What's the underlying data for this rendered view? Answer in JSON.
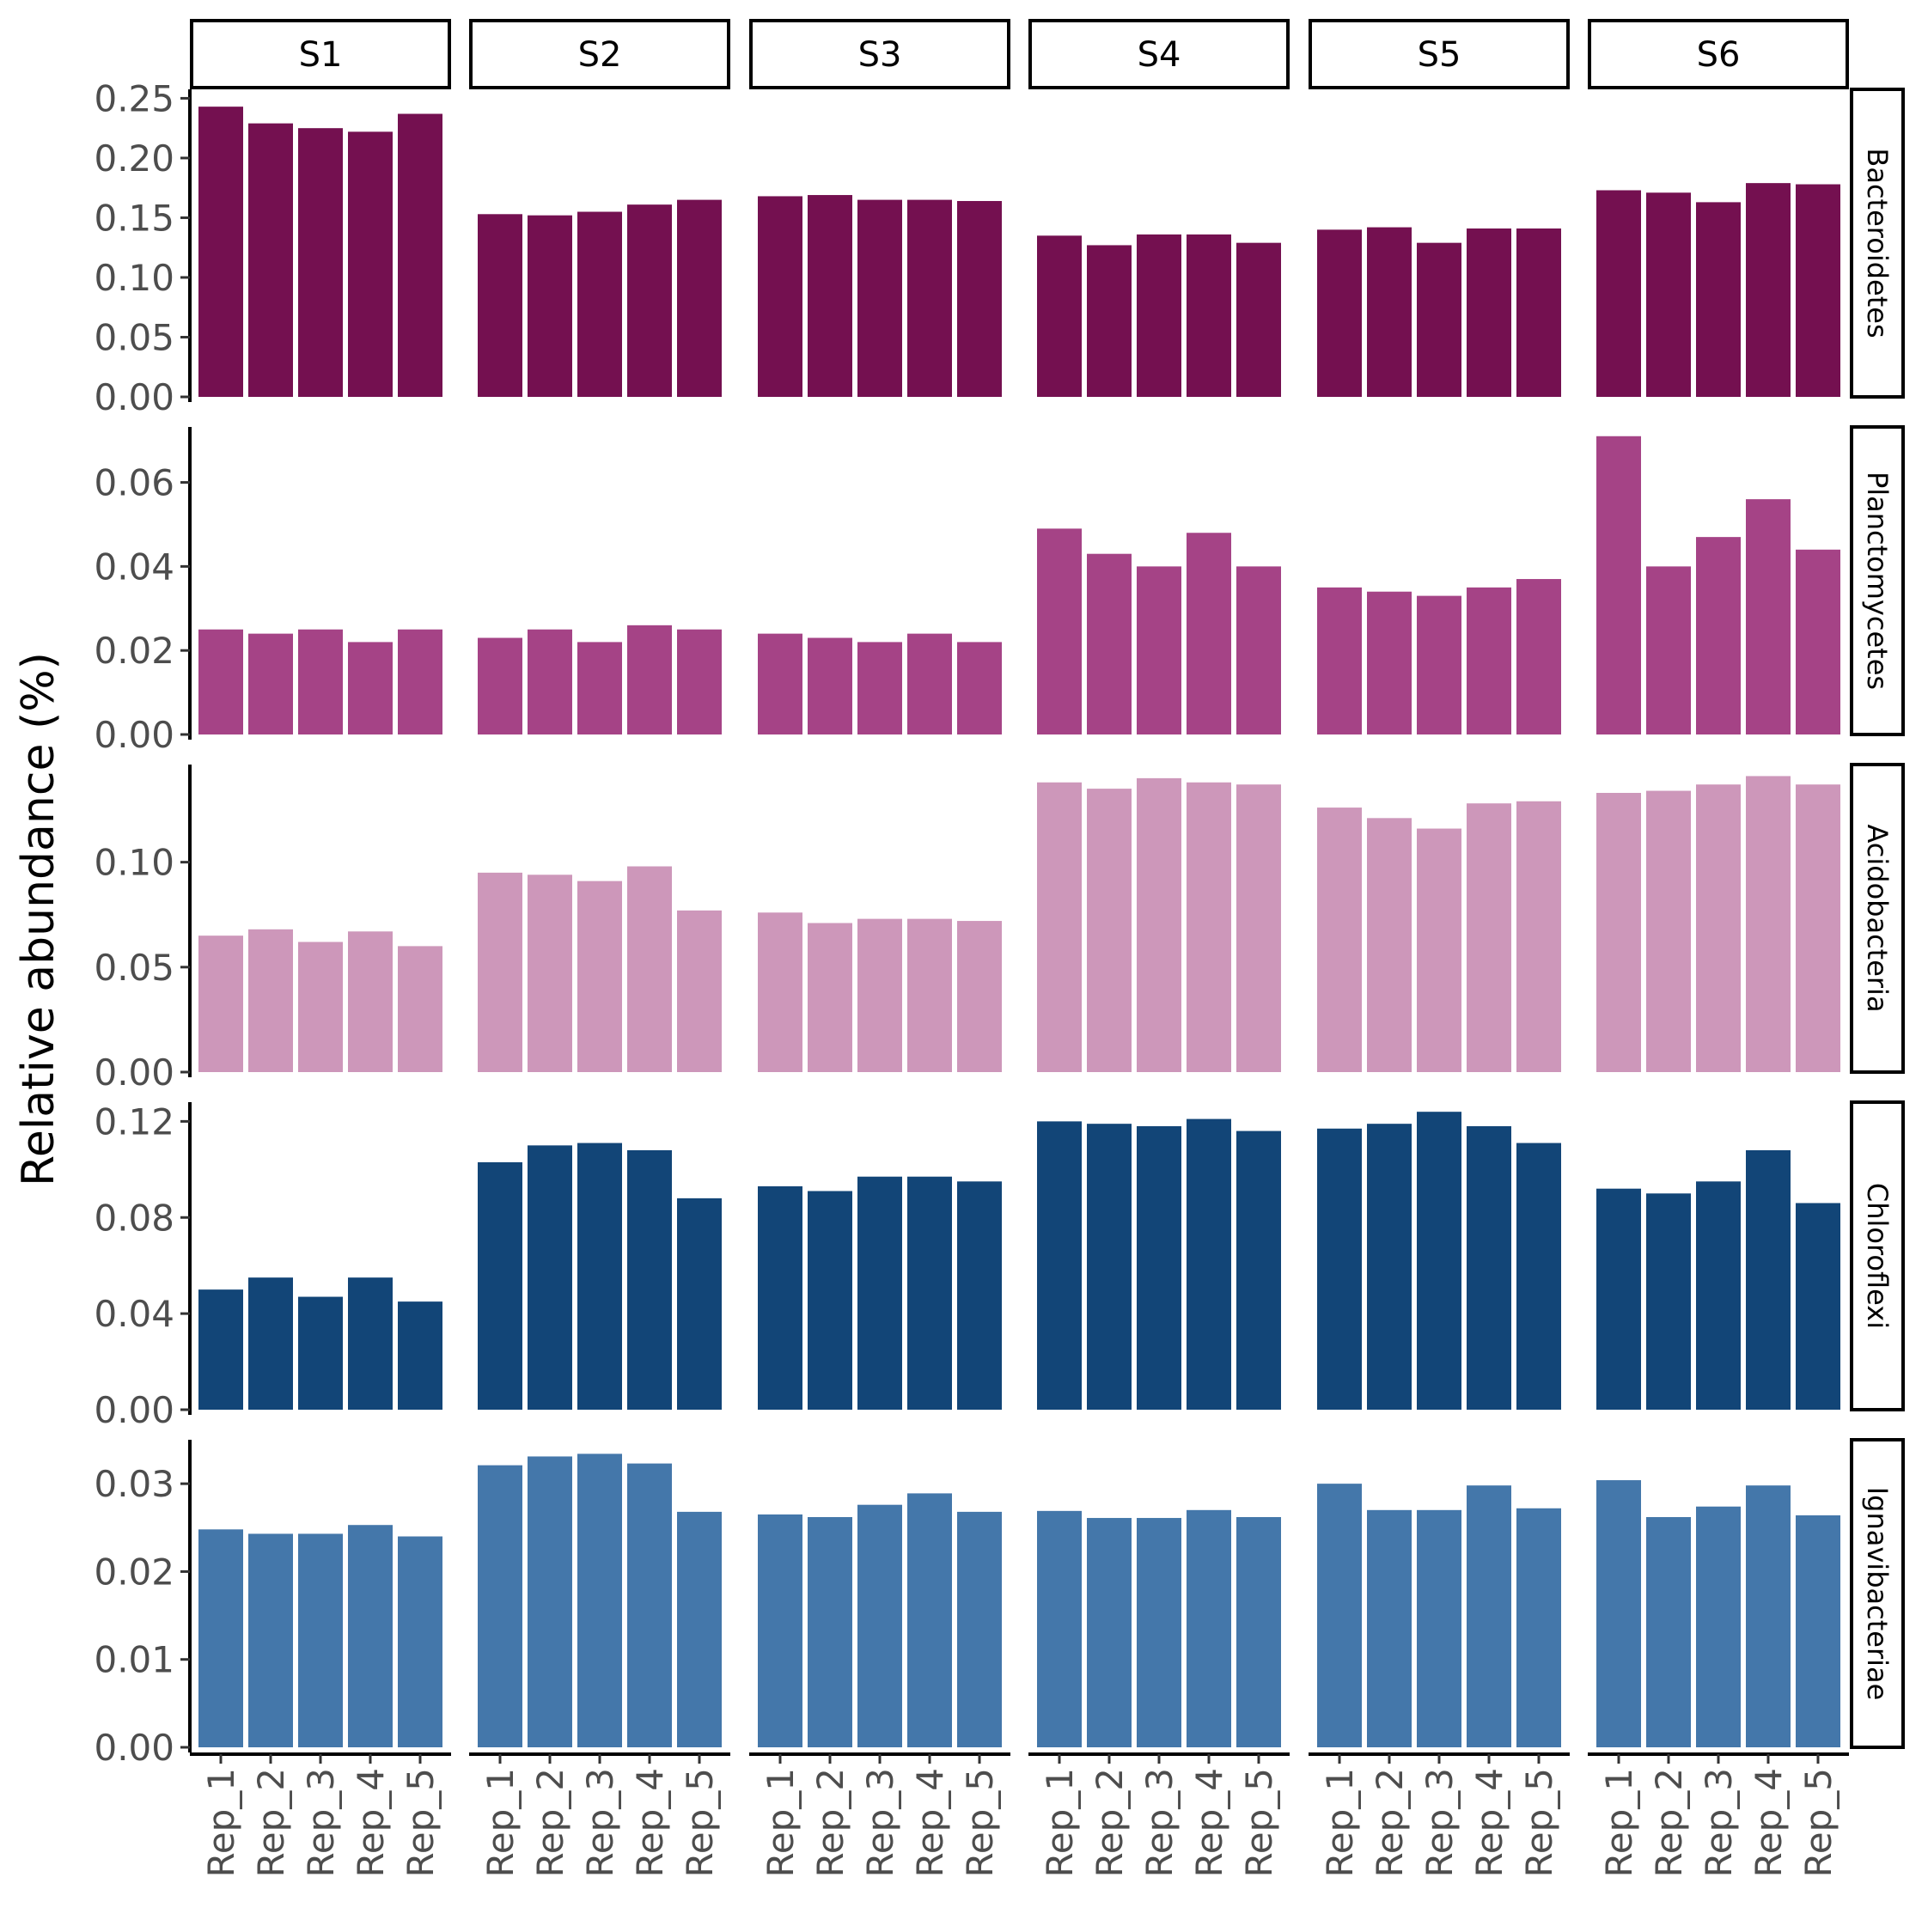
{
  "chart_data": {
    "type": "bar",
    "ylabel": "Relative abundance (%)",
    "xlabel": "",
    "facet_columns": [
      "S1",
      "S2",
      "S3",
      "S4",
      "S5",
      "S6"
    ],
    "categories": [
      "Rep_1",
      "Rep_2",
      "Rep_3",
      "Rep_4",
      "Rep_5"
    ],
    "grid": false,
    "legend": "none",
    "rows": [
      {
        "name": "Bacteroidetes",
        "color": "#741050",
        "ylim": [
          0,
          0.2575
        ],
        "yticks": [
          "0.00",
          "0.05",
          "0.10",
          "0.15",
          "0.20",
          "0.25"
        ],
        "values": [
          [
            0.243,
            0.229,
            0.225,
            0.222,
            0.237
          ],
          [
            0.153,
            0.152,
            0.155,
            0.161,
            0.165
          ],
          [
            0.168,
            0.169,
            0.165,
            0.165,
            0.164
          ],
          [
            0.135,
            0.127,
            0.136,
            0.136,
            0.129
          ],
          [
            0.14,
            0.142,
            0.129,
            0.141,
            0.141
          ],
          [
            0.173,
            0.171,
            0.163,
            0.179,
            0.178
          ]
        ]
      },
      {
        "name": "Planctomycetes",
        "color": "#A54386",
        "ylim": [
          0,
          0.0732
        ],
        "yticks": [
          "0.00",
          "0.02",
          "0.04",
          "0.06"
        ],
        "values": [
          [
            0.025,
            0.024,
            0.025,
            0.022,
            0.025
          ],
          [
            0.023,
            0.025,
            0.022,
            0.026,
            0.025
          ],
          [
            0.024,
            0.023,
            0.022,
            0.024,
            0.022
          ],
          [
            0.049,
            0.043,
            0.04,
            0.048,
            0.04
          ],
          [
            0.035,
            0.034,
            0.033,
            0.035,
            0.037
          ],
          [
            0.071,
            0.04,
            0.047,
            0.056,
            0.044
          ]
        ]
      },
      {
        "name": "Acidobacteria",
        "color": "#CD97BA",
        "ylim": [
          0,
          0.1465
        ],
        "yticks": [
          "0.00",
          "0.05",
          "0.10"
        ],
        "values": [
          [
            0.065,
            0.068,
            0.062,
            0.067,
            0.06
          ],
          [
            0.095,
            0.094,
            0.091,
            0.098,
            0.077
          ],
          [
            0.076,
            0.071,
            0.073,
            0.073,
            0.072
          ],
          [
            0.138,
            0.135,
            0.14,
            0.138,
            0.137
          ],
          [
            0.126,
            0.121,
            0.116,
            0.128,
            0.129
          ],
          [
            0.133,
            0.134,
            0.137,
            0.141,
            0.137
          ]
        ]
      },
      {
        "name": "Chloroflexi",
        "color": "#124577",
        "ylim": [
          0,
          0.128
        ],
        "yticks": [
          "0.00",
          "0.04",
          "0.08",
          "0.12"
        ],
        "values": [
          [
            0.05,
            0.055,
            0.047,
            0.055,
            0.045
          ],
          [
            0.103,
            0.11,
            0.111,
            0.108,
            0.088
          ],
          [
            0.093,
            0.091,
            0.097,
            0.097,
            0.095
          ],
          [
            0.12,
            0.119,
            0.118,
            0.121,
            0.116
          ],
          [
            0.117,
            0.119,
            0.124,
            0.118,
            0.111
          ],
          [
            0.092,
            0.09,
            0.095,
            0.108,
            0.086
          ]
        ]
      },
      {
        "name": "Ignavibacteriae",
        "color": "#4477AA",
        "ylim": [
          0,
          0.035
        ],
        "yticks": [
          "0.00",
          "0.01",
          "0.02",
          "0.03"
        ],
        "values": [
          [
            0.0248,
            0.0243,
            0.0243,
            0.0253,
            0.024
          ],
          [
            0.0321,
            0.0331,
            0.0334,
            0.0323,
            0.0268
          ],
          [
            0.0265,
            0.0262,
            0.0276,
            0.0289,
            0.0268
          ],
          [
            0.0269,
            0.0261,
            0.0261,
            0.027,
            0.0262
          ],
          [
            0.03,
            0.027,
            0.027,
            0.0298,
            0.0272
          ],
          [
            0.0304,
            0.0262,
            0.0274,
            0.0298,
            0.0264
          ]
        ]
      }
    ]
  }
}
